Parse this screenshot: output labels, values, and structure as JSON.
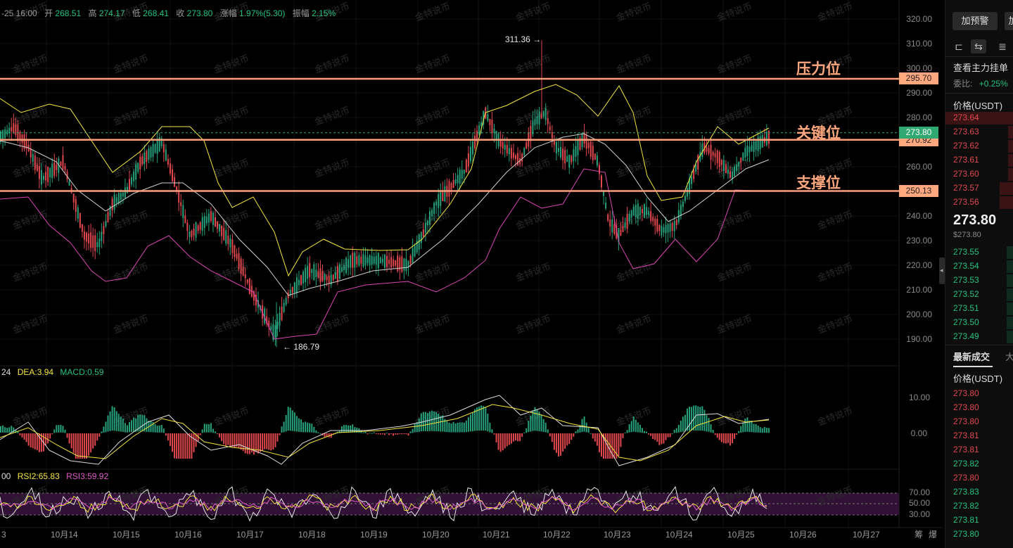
{
  "info": {
    "time": "-25 16:00",
    "open_label": "开",
    "open": "268.51",
    "high_label": "高",
    "high": "274.17",
    "low_label": "低",
    "low": "268.41",
    "close_label": "收",
    "close": "273.80",
    "change_label": "涨幅",
    "change": "1.97%(5.30)",
    "amp_label": "振幅",
    "amp": "2.15%"
  },
  "macd_legend": {
    "dif": "24",
    "dea": "DEA:3.94",
    "macd": "MACD:0.59"
  },
  "rsi_legend": {
    "rsi1": "00",
    "rsi2": "RSI2:65.83",
    "rsi3": "RSI3:59.92"
  },
  "levels": {
    "resistance_label": "压力位",
    "resistance": "295.70",
    "key_label": "关键位",
    "key": "270.92",
    "support_label": "支撑位",
    "support": "250.13",
    "current": "273.80"
  },
  "markers": {
    "high": "311.36",
    "low": "186.79"
  },
  "watermark": "金特说币",
  "price_axis": [
    "320.00",
    "310.00",
    "300.00",
    "290.00",
    "280.00",
    "270.00",
    "260.00",
    "250.00",
    "240.00",
    "230.00",
    "220.00",
    "210.00",
    "200.00",
    "190.00"
  ],
  "macd_axis": [
    "10.00",
    "0.00"
  ],
  "rsi_axis": [
    "70.00",
    "50.00",
    "30.00"
  ],
  "time_axis": [
    "3",
    "10月14",
    "10月15",
    "10月16",
    "10月17",
    "10月18",
    "10月19",
    "10月20",
    "10月21",
    "10月22",
    "10月23",
    "10月24",
    "10月25",
    "10月26",
    "10月27"
  ],
  "bottom_icons": {
    "chip": "筹",
    "burst": "爆"
  },
  "colors": {
    "up": "#26a17b",
    "down": "#e0484e",
    "level_line": "#ff9e7a",
    "boll_upper": "#f5e642",
    "boll_mid": "#cfcfcf",
    "boll_lower": "#d946b4",
    "current_tag": "#2fa872"
  },
  "side": {
    "alert_button": "加预警",
    "alert_button2": "加",
    "view_icons": [
      "single-panel-icon",
      "split-book-icon",
      "list-icon"
    ],
    "main_order_label": "查看主力挂单",
    "ratio_label": "委比:",
    "ratio_value": "+0.25%",
    "price_header": "价格(USDT)",
    "asks": [
      "273.64",
      "273.63",
      "273.62",
      "273.61",
      "273.60",
      "273.57",
      "273.56"
    ],
    "last_price": "273.80",
    "last_price_sub": "$273.80",
    "bids": [
      "273.55",
      "273.54",
      "273.53",
      "273.52",
      "273.51",
      "273.50",
      "273.49"
    ],
    "trades_tab": "最新成交",
    "trades_tab2": "大",
    "trades_header": "价格(USDT)",
    "trades": [
      {
        "p": "273.80",
        "side": "down"
      },
      {
        "p": "273.80",
        "side": "down"
      },
      {
        "p": "273.80",
        "side": "down"
      },
      {
        "p": "273.81",
        "side": "down"
      },
      {
        "p": "273.81",
        "side": "down"
      },
      {
        "p": "273.82",
        "side": "up"
      },
      {
        "p": "273.80",
        "side": "down"
      },
      {
        "p": "273.83",
        "side": "up"
      },
      {
        "p": "273.82",
        "side": "up"
      },
      {
        "p": "273.81",
        "side": "up"
      },
      {
        "p": "273.80",
        "side": "up"
      }
    ]
  }
}
